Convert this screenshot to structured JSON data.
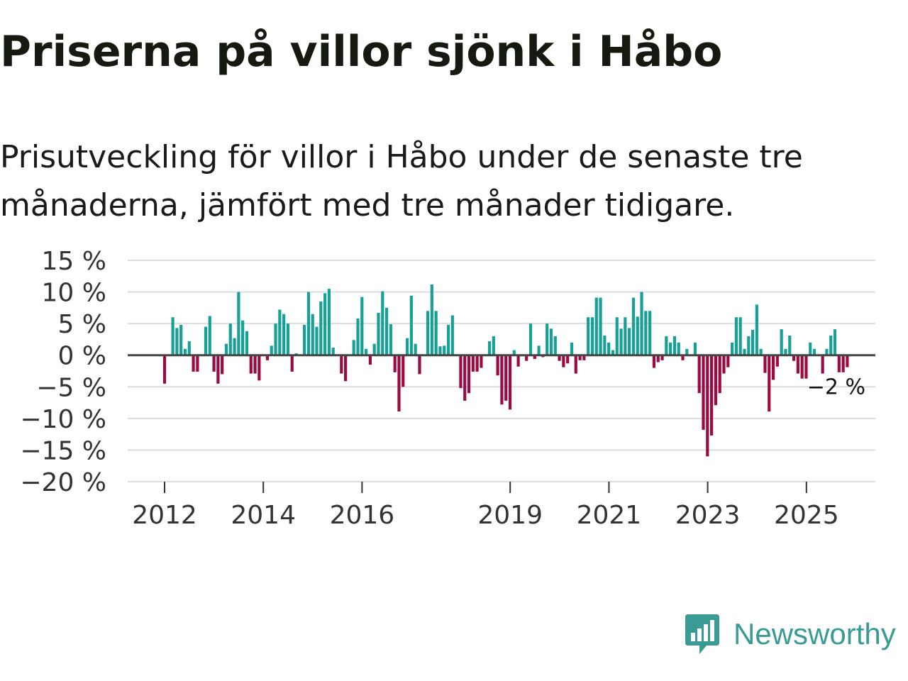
{
  "title": "Priserna på villor sjönk i Håbo",
  "subtitle": "Prisutveckling för villor i Håbo under de senaste tre månaderna, jämfört med tre månader tidigare.",
  "brand": {
    "name": "Newsworthy",
    "icon": "bar-chart-speech-bubble-icon",
    "color": "#3a9a94"
  },
  "colors": {
    "positive": "#17a096",
    "negative": "#9c0a42",
    "zero_line": "#444444",
    "grid": "#dddddd"
  },
  "chart_data": {
    "type": "bar",
    "title": "Priserna på villor sjönk i Håbo",
    "ylabel": "",
    "ylim": [
      -20,
      15
    ],
    "yticks": [
      15,
      10,
      5,
      0,
      -5,
      -10,
      -15,
      -20
    ],
    "ytick_labels": [
      "15 %",
      "10 %",
      "5 %",
      "0 %",
      "−5 %",
      "−10 %",
      "−15 %",
      "−20 %"
    ],
    "xticks": [
      2012,
      2014,
      2016,
      2019,
      2021,
      2023,
      2025
    ],
    "x_start": 2012.0,
    "x_step": 0.0833,
    "grid": true,
    "last_value_label": "−2 %",
    "values": [
      -4.5,
      0,
      6,
      4.3,
      4.8,
      1,
      2.2,
      -2.6,
      -2.6,
      0,
      4.5,
      6.2,
      -2.6,
      -4.5,
      -3,
      1.8,
      5,
      2.7,
      10,
      5.5,
      3.8,
      -2.9,
      -2.9,
      -4,
      0,
      -0.8,
      1.5,
      5,
      7.2,
      6.5,
      5,
      -2.6,
      0.3,
      0,
      4.8,
      10,
      6.5,
      4.5,
      8.5,
      9.8,
      10.5,
      1.2,
      0,
      -2.9,
      -4.1,
      0,
      2.4,
      5.8,
      9.2,
      1,
      -1.5,
      1.8,
      6.7,
      10.1,
      7.5,
      4.9,
      -2.7,
      -8.9,
      -5,
      2.7,
      9.4,
      1.8,
      -3,
      0,
      7,
      11.2,
      7,
      1.4,
      1.5,
      4.8,
      6.3,
      0,
      -5.2,
      -7.2,
      -6,
      -2.6,
      -2.6,
      -2,
      0,
      2.2,
      3,
      -3.2,
      -7.8,
      -7.2,
      -8.6,
      0.8,
      -1.8,
      0,
      -0.9,
      5,
      -0.6,
      1.5,
      -0.3,
      5,
      4.2,
      3,
      -0.9,
      -1.9,
      -1.3,
      2,
      -2.9,
      -0.8,
      -0.8,
      6,
      6,
      9.1,
      9.1,
      3.1,
      2,
      0.8,
      6,
      4.2,
      6,
      4.3,
      9.1,
      6.1,
      10,
      7,
      7,
      -2,
      -1.1,
      -0.8,
      3,
      2,
      3,
      2,
      -0.8,
      1,
      0,
      2,
      -6,
      -11.8,
      -16,
      -12.7,
      -7.9,
      -6,
      -2.9,
      -1.9,
      2,
      6,
      6,
      1,
      3,
      4,
      8,
      1,
      -2.8,
      -8.9,
      -3.9,
      -1.8,
      4.1,
      1,
      3.1,
      -0.9,
      -2.9,
      -3.7,
      -3.7,
      2,
      1,
      0,
      -2.9,
      1,
      3.1,
      4.1,
      -2.7,
      -2.7,
      -1.9
    ]
  }
}
